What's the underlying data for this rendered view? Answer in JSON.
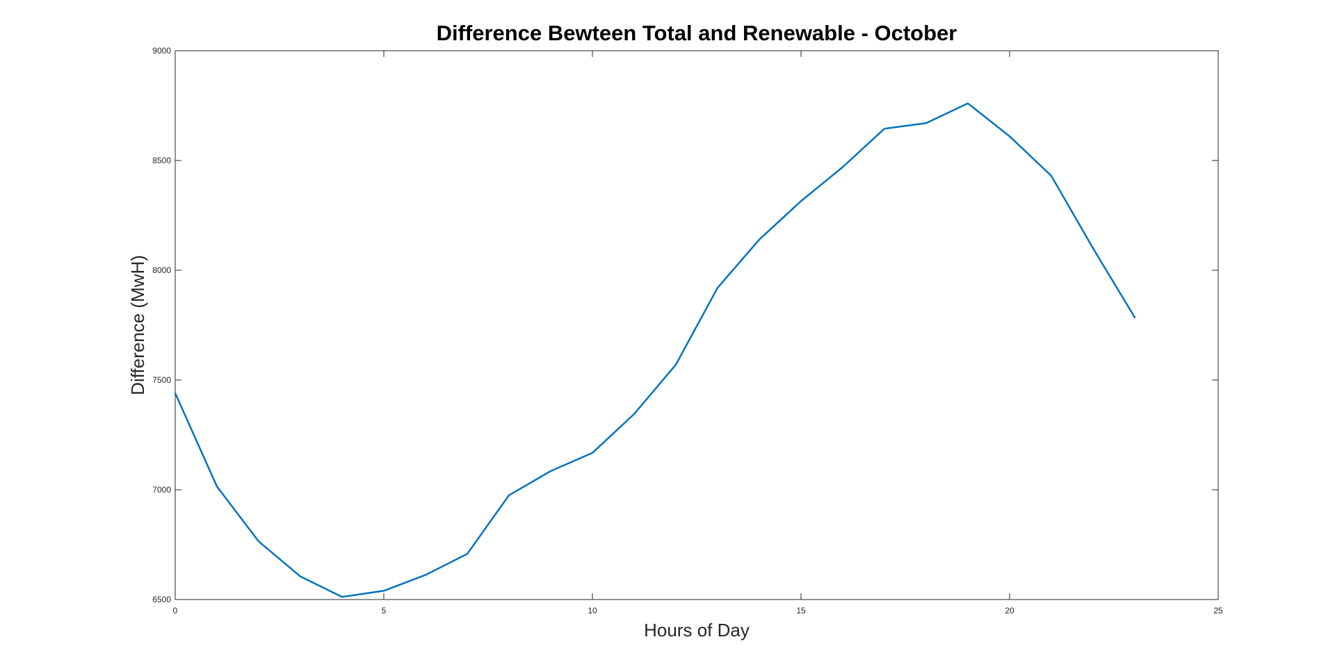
{
  "chart_data": {
    "type": "line",
    "title": "Difference Bewteen Total and Renewable - October",
    "xlabel": "Hours of Day",
    "ylabel": "Difference (MwH)",
    "xlim": [
      0,
      25
    ],
    "ylim": [
      6500,
      9000
    ],
    "xticks": [
      0,
      5,
      10,
      15,
      20,
      25
    ],
    "yticks": [
      6500,
      7000,
      7500,
      8000,
      8500,
      9000
    ],
    "xtick_labels": [
      "0",
      "5",
      "10",
      "15",
      "20",
      "25"
    ],
    "ytick_labels": [
      "6500",
      "7000",
      "7500",
      "8000",
      "8500",
      "9000"
    ],
    "grid": false,
    "series": [
      {
        "name": "Difference",
        "color": "#0072BD",
        "x": [
          0,
          1,
          2,
          3,
          4,
          5,
          6,
          7,
          8,
          9,
          10,
          11,
          12,
          13,
          14,
          15,
          16,
          17,
          18,
          19,
          20,
          21,
          22,
          23
        ],
        "values": [
          7440,
          7015,
          6765,
          6605,
          6512,
          6540,
          6612,
          6708,
          6975,
          7085,
          7168,
          7345,
          7570,
          7920,
          8140,
          8315,
          8470,
          8645,
          8670,
          8760,
          8610,
          8430,
          8100,
          7785
        ]
      }
    ]
  }
}
